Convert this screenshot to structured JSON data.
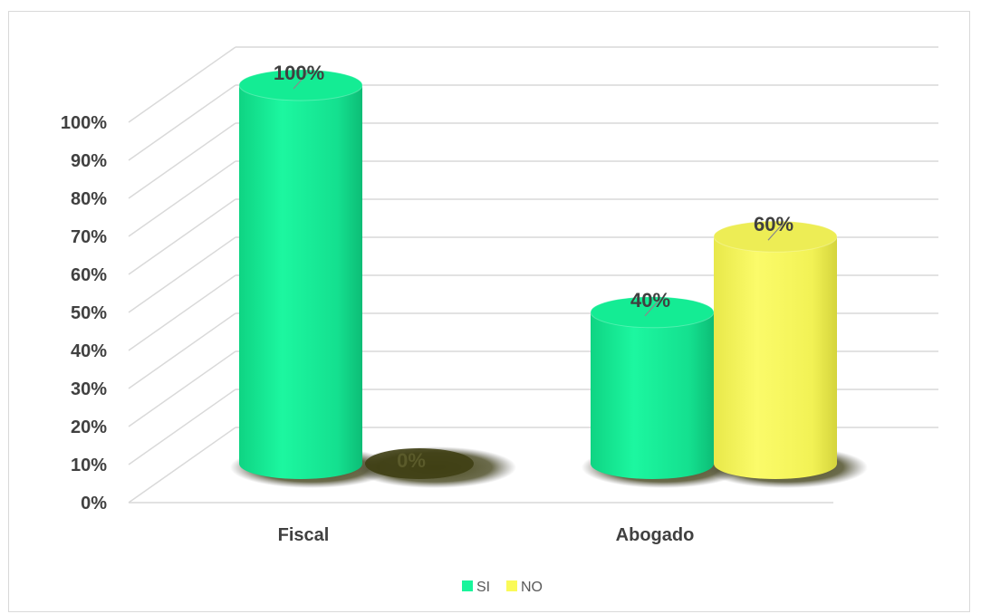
{
  "chart_data": {
    "type": "bar",
    "categories": [
      "Fiscal",
      "Abogado"
    ],
    "series": [
      {
        "name": "SI",
        "values": [
          100,
          40
        ],
        "color": "#19f59b"
      },
      {
        "name": "NO",
        "values": [
          0,
          60
        ],
        "color": "#fafa58"
      }
    ],
    "data_labels": [
      [
        "100%",
        "40%"
      ],
      [
        "0%",
        "60%"
      ]
    ],
    "y_ticks": [
      "0%",
      "10%",
      "20%",
      "30%",
      "40%",
      "50%",
      "60%",
      "70%",
      "80%",
      "90%",
      "100%"
    ],
    "ylim": [
      0,
      100
    ],
    "title": "",
    "xlabel": "",
    "ylabel": "",
    "grid": true,
    "legend_position": "bottom",
    "style": "3d-cylinder"
  }
}
